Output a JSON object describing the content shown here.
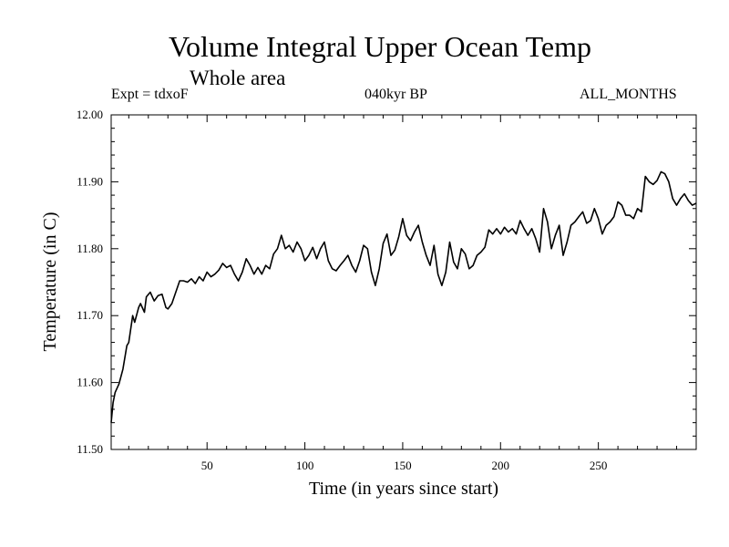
{
  "header": {
    "title": "Volume Integral Upper Ocean Temp",
    "subtitle": "Whole area",
    "expt": "Expt = tdxoF",
    "period": "040kyr BP",
    "months": "ALL_MONTHS"
  },
  "chart_data": {
    "type": "line",
    "title": "Volume Integral Upper Ocean Temp",
    "subtitle": "Whole area",
    "xlabel": "Time (in years since start)",
    "ylabel": "Temperature (in C)",
    "xlim": [
      1,
      300
    ],
    "ylim": [
      11.5,
      12.0
    ],
    "x_ticks": [
      50,
      100,
      150,
      200,
      250
    ],
    "y_ticks": [
      11.5,
      11.6,
      11.7,
      11.8,
      11.9,
      12.0
    ],
    "y_tick_labels": [
      "11.50",
      "11.60",
      "11.70",
      "11.80",
      "11.90",
      "12.00"
    ],
    "grid": false,
    "legend": "none",
    "line_color": "#000000",
    "series": [
      {
        "x": [
          1,
          2,
          3,
          5,
          7,
          9,
          10,
          12,
          13,
          15,
          16,
          18,
          19,
          21,
          23,
          25,
          27,
          29,
          30,
          32,
          34,
          36,
          38,
          40,
          42,
          44,
          46,
          48,
          50,
          52,
          54,
          56,
          58,
          60,
          62,
          64,
          66,
          68,
          70,
          72,
          74,
          76,
          78,
          80,
          82,
          84,
          86,
          88,
          90,
          92,
          94,
          96,
          98,
          100,
          102,
          104,
          106,
          108,
          110,
          112,
          114,
          116,
          118,
          120,
          122,
          124,
          126,
          128,
          130,
          132,
          134,
          136,
          138,
          140,
          142,
          144,
          146,
          148,
          150,
          152,
          154,
          156,
          158,
          160,
          162,
          164,
          166,
          168,
          170,
          172,
          174,
          176,
          178,
          180,
          182,
          184,
          186,
          188,
          190,
          192,
          194,
          196,
          198,
          200,
          202,
          204,
          206,
          208,
          210,
          212,
          214,
          216,
          218,
          220,
          222,
          224,
          226,
          228,
          230,
          232,
          234,
          236,
          238,
          240,
          242,
          244,
          246,
          248,
          250,
          252,
          254,
          256,
          258,
          260,
          262,
          264,
          266,
          268,
          270,
          272,
          274,
          276,
          278,
          280,
          282,
          284,
          286,
          288,
          290,
          292,
          294,
          296,
          298,
          300
        ],
        "y": [
          11.54,
          11.57,
          11.585,
          11.598,
          11.62,
          11.655,
          11.66,
          11.7,
          11.69,
          11.712,
          11.718,
          11.705,
          11.728,
          11.735,
          11.722,
          11.73,
          11.732,
          11.712,
          11.71,
          11.718,
          11.735,
          11.752,
          11.752,
          11.75,
          11.755,
          11.748,
          11.758,
          11.752,
          11.765,
          11.758,
          11.762,
          11.768,
          11.778,
          11.772,
          11.775,
          11.762,
          11.752,
          11.765,
          11.785,
          11.775,
          11.762,
          11.772,
          11.762,
          11.775,
          11.77,
          11.792,
          11.8,
          11.82,
          11.8,
          11.805,
          11.795,
          11.81,
          11.8,
          11.782,
          11.79,
          11.802,
          11.785,
          11.8,
          11.81,
          11.782,
          11.77,
          11.767,
          11.775,
          11.782,
          11.79,
          11.775,
          11.765,
          11.782,
          11.805,
          11.8,
          11.765,
          11.745,
          11.77,
          11.808,
          11.822,
          11.79,
          11.798,
          11.818,
          11.845,
          11.82,
          11.812,
          11.825,
          11.835,
          11.81,
          11.79,
          11.775,
          11.805,
          11.762,
          11.745,
          11.765,
          11.81,
          11.78,
          11.77,
          11.8,
          11.792,
          11.77,
          11.775,
          11.79,
          11.795,
          11.802,
          11.828,
          11.822,
          11.83,
          11.822,
          11.832,
          11.825,
          11.83,
          11.822,
          11.842,
          11.83,
          11.82,
          11.83,
          11.815,
          11.795,
          11.86,
          11.84,
          11.8,
          11.82,
          11.835,
          11.79,
          11.81,
          11.835,
          11.84,
          11.848,
          11.855,
          11.838,
          11.842,
          11.86,
          11.845,
          11.822,
          11.835,
          11.84,
          11.848,
          11.87,
          11.865,
          11.85,
          11.85,
          11.845,
          11.86,
          11.855,
          11.908,
          11.9,
          11.896,
          11.902,
          11.915,
          11.912,
          11.9,
          11.875,
          11.865,
          11.875,
          11.882,
          11.872,
          11.865,
          11.868
        ]
      }
    ]
  }
}
